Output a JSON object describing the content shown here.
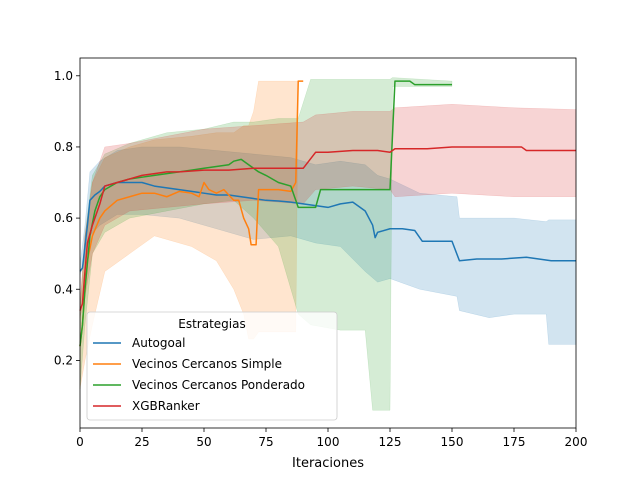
{
  "chart_data": {
    "type": "line",
    "title": "",
    "xlabel": "Iteraciones",
    "ylabel": "",
    "xlim": [
      0,
      200
    ],
    "ylim": [
      0.01,
      1.05
    ],
    "xticks": [
      0,
      25,
      50,
      75,
      100,
      125,
      150,
      175,
      200
    ],
    "yticks": [
      0.2,
      0.4,
      0.6,
      0.8,
      1.0
    ],
    "xtick_labels": [
      "0",
      "25",
      "50",
      "75",
      "100",
      "125",
      "150",
      "175",
      "200"
    ],
    "ytick_labels": [
      "0.2",
      "0.4",
      "0.6",
      "0.8",
      "1.0"
    ],
    "grid": false,
    "legend": {
      "title": "Estrategias",
      "placement": "lower-left"
    },
    "series": [
      {
        "name": "Autogoal",
        "color": "#1f77b4",
        "points": [
          [
            0,
            0.45
          ],
          [
            1,
            0.46
          ],
          [
            2,
            0.52
          ],
          [
            3,
            0.58
          ],
          [
            4,
            0.65
          ],
          [
            6,
            0.665
          ],
          [
            8,
            0.675
          ],
          [
            10,
            0.69
          ],
          [
            15,
            0.7
          ],
          [
            20,
            0.7
          ],
          [
            25,
            0.7
          ],
          [
            30,
            0.69
          ],
          [
            35,
            0.685
          ],
          [
            40,
            0.68
          ],
          [
            45,
            0.675
          ],
          [
            50,
            0.67
          ],
          [
            55,
            0.665
          ],
          [
            60,
            0.665
          ],
          [
            65,
            0.66
          ],
          [
            70,
            0.655
          ],
          [
            75,
            0.65
          ],
          [
            80,
            0.648
          ],
          [
            85,
            0.645
          ],
          [
            90,
            0.64
          ],
          [
            95,
            0.635
          ],
          [
            100,
            0.63
          ],
          [
            105,
            0.64
          ],
          [
            110,
            0.645
          ],
          [
            115,
            0.62
          ],
          [
            118,
            0.58
          ],
          [
            119,
            0.545
          ],
          [
            120,
            0.56
          ],
          [
            125,
            0.57
          ],
          [
            130,
            0.57
          ],
          [
            135,
            0.565
          ],
          [
            138,
            0.535
          ],
          [
            145,
            0.535
          ],
          [
            150,
            0.535
          ],
          [
            153,
            0.48
          ],
          [
            160,
            0.485
          ],
          [
            170,
            0.485
          ],
          [
            180,
            0.49
          ],
          [
            190,
            0.48
          ],
          [
            200,
            0.48
          ]
        ],
        "band": [
          [
            0,
            0.44,
            0.47
          ],
          [
            2,
            0.48,
            0.58
          ],
          [
            4,
            0.55,
            0.73
          ],
          [
            8,
            0.58,
            0.76
          ],
          [
            15,
            0.61,
            0.79
          ],
          [
            25,
            0.61,
            0.8
          ],
          [
            40,
            0.6,
            0.8
          ],
          [
            55,
            0.57,
            0.79
          ],
          [
            70,
            0.54,
            0.78
          ],
          [
            85,
            0.55,
            0.77
          ],
          [
            95,
            0.53,
            0.75
          ],
          [
            105,
            0.52,
            0.76
          ],
          [
            115,
            0.45,
            0.75
          ],
          [
            120,
            0.42,
            0.72
          ],
          [
            125,
            0.43,
            0.71
          ],
          [
            137,
            0.4,
            0.67
          ],
          [
            152,
            0.38,
            0.66
          ],
          [
            153,
            0.34,
            0.6
          ],
          [
            165,
            0.32,
            0.6
          ],
          [
            175,
            0.33,
            0.6
          ],
          [
            188,
            0.33,
            0.59
          ],
          [
            189,
            0.245,
            0.595
          ],
          [
            200,
            0.245,
            0.595
          ]
        ]
      },
      {
        "name": "Vecinos Cercanos Simple",
        "color": "#ff7f0e",
        "points": [
          [
            0,
            0.24
          ],
          [
            1,
            0.3
          ],
          [
            2,
            0.4
          ],
          [
            3,
            0.48
          ],
          [
            5,
            0.55
          ],
          [
            8,
            0.6
          ],
          [
            10,
            0.62
          ],
          [
            15,
            0.65
          ],
          [
            20,
            0.66
          ],
          [
            25,
            0.67
          ],
          [
            30,
            0.67
          ],
          [
            35,
            0.66
          ],
          [
            40,
            0.675
          ],
          [
            45,
            0.67
          ],
          [
            48,
            0.66
          ],
          [
            50,
            0.7
          ],
          [
            52,
            0.68
          ],
          [
            55,
            0.67
          ],
          [
            58,
            0.68
          ],
          [
            60,
            0.665
          ],
          [
            62,
            0.65
          ],
          [
            64,
            0.65
          ],
          [
            66,
            0.6
          ],
          [
            68,
            0.57
          ],
          [
            69,
            0.525
          ],
          [
            71,
            0.525
          ],
          [
            72,
            0.68
          ],
          [
            75,
            0.68
          ],
          [
            80,
            0.68
          ],
          [
            85,
            0.675
          ],
          [
            87,
            0.7
          ],
          [
            88,
            0.985
          ],
          [
            90,
            0.985
          ]
        ],
        "band": [
          [
            0,
            0.12,
            0.34
          ],
          [
            2,
            0.2,
            0.55
          ],
          [
            5,
            0.3,
            0.7
          ],
          [
            10,
            0.45,
            0.77
          ],
          [
            20,
            0.5,
            0.8
          ],
          [
            30,
            0.55,
            0.82
          ],
          [
            45,
            0.52,
            0.83
          ],
          [
            55,
            0.48,
            0.84
          ],
          [
            62,
            0.4,
            0.84
          ],
          [
            66,
            0.33,
            0.86
          ],
          [
            68,
            0.26,
            0.86
          ],
          [
            70,
            0.26,
            0.9
          ],
          [
            72,
            0.28,
            0.985
          ],
          [
            80,
            0.28,
            0.985
          ],
          [
            87,
            0.28,
            0.985
          ],
          [
            88,
            0.985,
            0.985
          ],
          [
            90,
            0.985,
            0.985
          ]
        ]
      },
      {
        "name": "Vecinos Cercanos Ponderado",
        "color": "#2ca02c",
        "points": [
          [
            0,
            0.24
          ],
          [
            1,
            0.3
          ],
          [
            2,
            0.4
          ],
          [
            4,
            0.55
          ],
          [
            6,
            0.62
          ],
          [
            8,
            0.66
          ],
          [
            10,
            0.68
          ],
          [
            15,
            0.7
          ],
          [
            20,
            0.71
          ],
          [
            25,
            0.715
          ],
          [
            30,
            0.72
          ],
          [
            35,
            0.725
          ],
          [
            40,
            0.73
          ],
          [
            45,
            0.735
          ],
          [
            50,
            0.74
          ],
          [
            55,
            0.745
          ],
          [
            60,
            0.75
          ],
          [
            62,
            0.76
          ],
          [
            65,
            0.765
          ],
          [
            68,
            0.75
          ],
          [
            70,
            0.74
          ],
          [
            72,
            0.73
          ],
          [
            75,
            0.72
          ],
          [
            80,
            0.7
          ],
          [
            85,
            0.69
          ],
          [
            88,
            0.63
          ],
          [
            95,
            0.63
          ],
          [
            97,
            0.68
          ],
          [
            105,
            0.68
          ],
          [
            115,
            0.68
          ],
          [
            125,
            0.68
          ],
          [
            127,
            0.985
          ],
          [
            133,
            0.985
          ],
          [
            135,
            0.975
          ],
          [
            145,
            0.975
          ],
          [
            150,
            0.975
          ]
        ],
        "band": [
          [
            0,
            0.12,
            0.34
          ],
          [
            2,
            0.3,
            0.55
          ],
          [
            5,
            0.5,
            0.72
          ],
          [
            10,
            0.56,
            0.78
          ],
          [
            20,
            0.6,
            0.81
          ],
          [
            35,
            0.62,
            0.84
          ],
          [
            50,
            0.64,
            0.85
          ],
          [
            62,
            0.65,
            0.87
          ],
          [
            70,
            0.6,
            0.87
          ],
          [
            80,
            0.52,
            0.88
          ],
          [
            88,
            0.33,
            0.88
          ],
          [
            93,
            0.3,
            0.99
          ],
          [
            105,
            0.285,
            0.99
          ],
          [
            115,
            0.285,
            0.99
          ],
          [
            118,
            0.06,
            0.99
          ],
          [
            125,
            0.06,
            0.99
          ],
          [
            126,
            0.97,
            0.995
          ],
          [
            150,
            0.97,
            0.985
          ]
        ]
      },
      {
        "name": "XGBRanker",
        "color": "#d62728",
        "points": [
          [
            0,
            0.34
          ],
          [
            1,
            0.36
          ],
          [
            2,
            0.45
          ],
          [
            3,
            0.53
          ],
          [
            5,
            0.58
          ],
          [
            8,
            0.64
          ],
          [
            10,
            0.69
          ],
          [
            15,
            0.7
          ],
          [
            20,
            0.71
          ],
          [
            25,
            0.72
          ],
          [
            30,
            0.725
          ],
          [
            35,
            0.73
          ],
          [
            40,
            0.73
          ],
          [
            50,
            0.735
          ],
          [
            60,
            0.735
          ],
          [
            70,
            0.74
          ],
          [
            80,
            0.74
          ],
          [
            90,
            0.74
          ],
          [
            95,
            0.785
          ],
          [
            100,
            0.785
          ],
          [
            110,
            0.79
          ],
          [
            120,
            0.79
          ],
          [
            125,
            0.785
          ],
          [
            127,
            0.795
          ],
          [
            140,
            0.795
          ],
          [
            150,
            0.8
          ],
          [
            160,
            0.8
          ],
          [
            178,
            0.8
          ],
          [
            180,
            0.79
          ],
          [
            200,
            0.79
          ]
        ],
        "band": [
          [
            0,
            0.32,
            0.36
          ],
          [
            2,
            0.38,
            0.55
          ],
          [
            5,
            0.5,
            0.7
          ],
          [
            10,
            0.58,
            0.8
          ],
          [
            20,
            0.62,
            0.81
          ],
          [
            35,
            0.63,
            0.83
          ],
          [
            50,
            0.64,
            0.85
          ],
          [
            70,
            0.65,
            0.86
          ],
          [
            90,
            0.64,
            0.87
          ],
          [
            95,
            0.68,
            0.89
          ],
          [
            110,
            0.69,
            0.9
          ],
          [
            125,
            0.68,
            0.9
          ],
          [
            127,
            0.66,
            0.91
          ],
          [
            150,
            0.67,
            0.92
          ],
          [
            175,
            0.66,
            0.91
          ],
          [
            200,
            0.66,
            0.905
          ]
        ]
      }
    ]
  }
}
